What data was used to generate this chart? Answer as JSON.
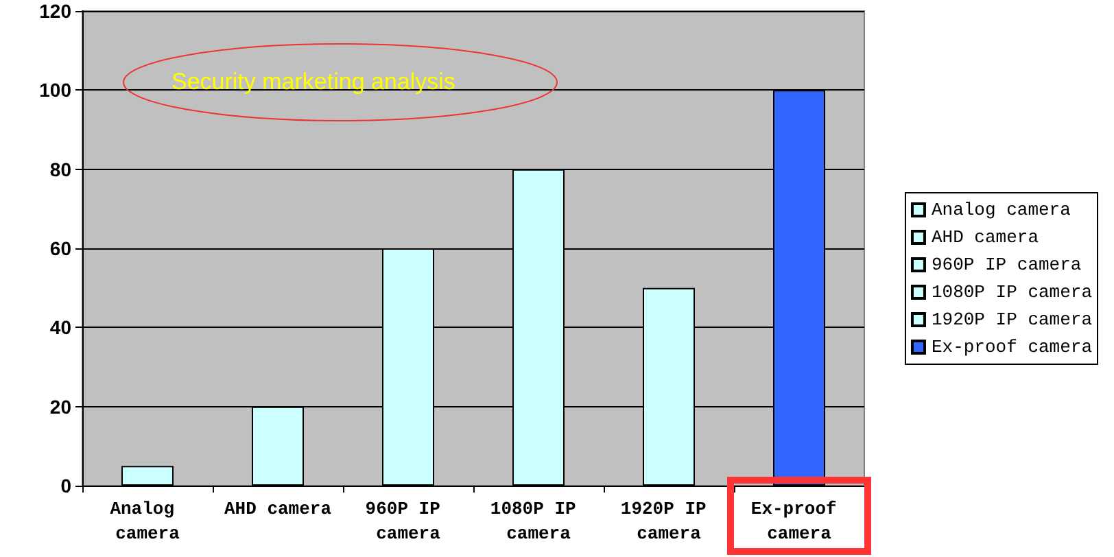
{
  "chart_data": {
    "type": "bar",
    "title": "Security marketing analysis",
    "categories": [
      "Analog camera",
      "AHD camera",
      "960P IP camera",
      "1080P IP camera",
      "1920P IP camera",
      "Ex-proof camera"
    ],
    "series": [
      {
        "name": "Analog camera",
        "color": "#ccffff",
        "values": [
          5,
          null,
          null,
          null,
          null,
          null
        ]
      },
      {
        "name": "AHD camera",
        "color": "#ccffff",
        "values": [
          null,
          20,
          null,
          null,
          null,
          null
        ]
      },
      {
        "name": "960P IP camera",
        "color": "#ccffff",
        "values": [
          null,
          null,
          60,
          null,
          null,
          null
        ]
      },
      {
        "name": "1080P IP camera",
        "color": "#ccffff",
        "values": [
          null,
          null,
          null,
          80,
          null,
          null
        ]
      },
      {
        "name": "1920P IP camera",
        "color": "#ccffff",
        "values": [
          null,
          null,
          null,
          null,
          50,
          null
        ]
      },
      {
        "name": "Ex-proof camera",
        "color": "#3366ff",
        "values": [
          null,
          null,
          null,
          null,
          null,
          100
        ]
      }
    ],
    "ylim": [
      0,
      120
    ],
    "yticks": [
      0,
      20,
      40,
      60,
      80,
      100,
      120
    ],
    "grid": "y",
    "legend": "right"
  }
}
